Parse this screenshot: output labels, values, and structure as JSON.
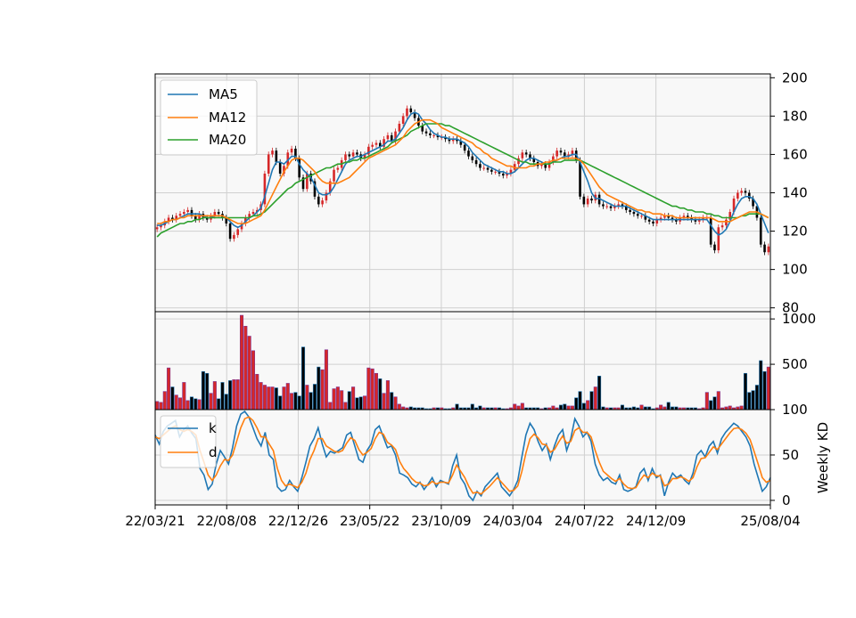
{
  "chart_data": [
    {
      "panel": "price",
      "type": "candlestick",
      "ylim": [
        78,
        202
      ],
      "yticks": [
        "80",
        "100",
        "120",
        "140",
        "160",
        "180",
        "200"
      ],
      "grid": true,
      "legend_position": "top-left",
      "legend": [
        "MA5",
        "MA12",
        "MA20"
      ],
      "colors": {
        "MA5": "#1f77b4",
        "MA12": "#ff7f0e",
        "MA20": "#2ca02c",
        "up": "#d62728",
        "down": "#000000"
      },
      "close": [
        122,
        123,
        125,
        127,
        126,
        128,
        129,
        130,
        131,
        128,
        126,
        129,
        127,
        126,
        128,
        130,
        129,
        127,
        124,
        116,
        118,
        121,
        124,
        127,
        129,
        130,
        131,
        134,
        150,
        160,
        162,
        156,
        150,
        154,
        161,
        163,
        158,
        148,
        142,
        150,
        146,
        138,
        134,
        136,
        140,
        146,
        152,
        153,
        157,
        160,
        159,
        161,
        160,
        158,
        160,
        164,
        165,
        166,
        164,
        168,
        170,
        167,
        172,
        176,
        180,
        184,
        182,
        179,
        175,
        172,
        171,
        170,
        170,
        169,
        169,
        168,
        167,
        168,
        167,
        165,
        162,
        159,
        157,
        155,
        153,
        153,
        152,
        151,
        151,
        150,
        149,
        150,
        152,
        155,
        158,
        161,
        160,
        158,
        156,
        154,
        155,
        153,
        156,
        159,
        162,
        161,
        159,
        160,
        162,
        157,
        138,
        134,
        137,
        136,
        139,
        134,
        133,
        133,
        132,
        133,
        134,
        133,
        131,
        130,
        129,
        128,
        128,
        126,
        125,
        124,
        126,
        127,
        128,
        127,
        126,
        125,
        127,
        128,
        127,
        126,
        125,
        126,
        127,
        127,
        113,
        110,
        122,
        123,
        126,
        130,
        137,
        140,
        141,
        140,
        137,
        133,
        127,
        113,
        109,
        112
      ],
      "ma5": [
        123,
        123,
        124,
        125,
        126,
        126,
        127,
        128,
        129,
        129,
        129,
        129,
        128,
        127,
        127,
        128,
        128,
        128,
        127,
        125,
        123,
        122,
        123,
        125,
        127,
        128,
        130,
        132,
        138,
        145,
        152,
        156,
        156,
        155,
        157,
        159,
        159,
        155,
        152,
        150,
        148,
        144,
        140,
        139,
        139,
        140,
        143,
        147,
        151,
        155,
        157,
        158,
        159,
        159,
        160,
        161,
        162,
        163,
        164,
        165,
        167,
        167,
        168,
        171,
        174,
        178,
        181,
        182,
        181,
        178,
        176,
        173,
        171,
        170,
        169,
        169,
        168,
        168,
        168,
        167,
        166,
        164,
        161,
        159,
        157,
        155,
        154,
        153,
        152,
        151,
        151,
        150,
        150,
        151,
        153,
        155,
        157,
        158,
        158,
        157,
        156,
        155,
        155,
        156,
        157,
        158,
        159,
        159,
        160,
        160,
        156,
        151,
        146,
        140,
        137,
        137,
        136,
        135,
        134,
        133,
        133,
        133,
        133,
        132,
        131,
        130,
        129,
        128,
        127,
        126,
        126,
        126,
        126,
        126,
        126,
        126,
        126,
        126,
        126,
        126,
        126,
        126,
        126,
        126,
        123,
        120,
        118,
        119,
        121,
        125,
        130,
        134,
        137,
        138,
        138,
        137,
        134,
        129,
        124,
        119
      ],
      "ma12": [
        124,
        124,
        125,
        125,
        126,
        126,
        127,
        127,
        128,
        128,
        128,
        128,
        128,
        128,
        128,
        128,
        128,
        128,
        127,
        126,
        125,
        124,
        124,
        124,
        125,
        126,
        127,
        128,
        131,
        135,
        139,
        143,
        147,
        151,
        154,
        157,
        158,
        158,
        157,
        155,
        153,
        151,
        148,
        146,
        145,
        145,
        145,
        145,
        146,
        147,
        148,
        150,
        152,
        154,
        156,
        158,
        159,
        160,
        161,
        162,
        163,
        164,
        165,
        167,
        169,
        172,
        174,
        176,
        177,
        178,
        178,
        178,
        177,
        176,
        174,
        173,
        172,
        171,
        170,
        169,
        168,
        167,
        166,
        164,
        163,
        161,
        160,
        158,
        157,
        156,
        155,
        154,
        154,
        153,
        153,
        153,
        153,
        154,
        154,
        155,
        155,
        156,
        156,
        157,
        157,
        158,
        158,
        158,
        158,
        158,
        157,
        155,
        152,
        149,
        146,
        143,
        141,
        139,
        138,
        137,
        136,
        135,
        134,
        133,
        132,
        131,
        131,
        130,
        130,
        129,
        129,
        129,
        128,
        128,
        128,
        127,
        127,
        127,
        127,
        127,
        127,
        127,
        127,
        127,
        127,
        126,
        125,
        125,
        125,
        125,
        126,
        127,
        128,
        129,
        130,
        130,
        130,
        129,
        128,
        127
      ],
      "ma20": [
        117,
        119,
        120,
        121,
        122,
        123,
        124,
        124,
        125,
        125,
        126,
        126,
        127,
        127,
        127,
        127,
        127,
        127,
        127,
        127,
        127,
        127,
        127,
        127,
        127,
        128,
        128,
        129,
        130,
        132,
        134,
        136,
        138,
        140,
        142,
        143,
        145,
        146,
        147,
        148,
        149,
        150,
        151,
        152,
        153,
        153,
        154,
        155,
        155,
        156,
        156,
        157,
        157,
        158,
        158,
        159,
        160,
        161,
        162,
        163,
        164,
        166,
        167,
        168,
        169,
        170,
        172,
        173,
        174,
        175,
        176,
        176,
        176,
        176,
        176,
        175,
        175,
        174,
        173,
        172,
        171,
        170,
        169,
        168,
        167,
        166,
        165,
        164,
        163,
        162,
        161,
        160,
        159,
        158,
        157,
        156,
        156,
        155,
        155,
        155,
        155,
        155,
        155,
        156,
        156,
        156,
        157,
        157,
        157,
        157,
        157,
        156,
        155,
        154,
        153,
        152,
        151,
        150,
        149,
        148,
        147,
        146,
        145,
        144,
        143,
        142,
        141,
        140,
        139,
        138,
        137,
        136,
        135,
        134,
        133,
        133,
        132,
        132,
        131,
        131,
        130,
        130,
        130,
        129,
        129,
        128,
        128,
        127,
        127,
        127,
        127,
        127,
        128,
        128,
        129,
        129,
        129,
        129,
        128,
        127
      ]
    },
    {
      "panel": "volume",
      "type": "bar",
      "ylim": [
        0,
        1080
      ],
      "yticks": [
        "500",
        "1000"
      ],
      "grid": true,
      "values": [
        90,
        80,
        200,
        460,
        250,
        160,
        130,
        300,
        100,
        140,
        120,
        110,
        420,
        400,
        180,
        310,
        120,
        300,
        170,
        320,
        330,
        330,
        1040,
        920,
        810,
        650,
        390,
        300,
        270,
        250,
        250,
        240,
        150,
        250,
        290,
        180,
        190,
        150,
        690,
        270,
        190,
        280,
        470,
        440,
        660,
        80,
        230,
        250,
        210,
        80,
        200,
        250,
        130,
        140,
        150,
        460,
        450,
        400,
        340,
        180,
        320,
        190,
        140,
        60,
        30,
        20,
        30,
        20,
        20,
        20,
        10,
        10,
        20,
        20,
        20,
        10,
        10,
        20,
        60,
        20,
        20,
        20,
        60,
        20,
        40,
        20,
        20,
        20,
        20,
        20,
        10,
        10,
        20,
        60,
        40,
        70,
        20,
        20,
        20,
        20,
        10,
        20,
        20,
        40,
        20,
        50,
        60,
        40,
        40,
        130,
        200,
        70,
        100,
        200,
        250,
        370,
        30,
        20,
        20,
        20,
        20,
        50,
        20,
        20,
        30,
        20,
        50,
        30,
        30,
        10,
        20,
        50,
        30,
        80,
        30,
        30,
        20,
        20,
        20,
        20,
        20,
        10,
        20,
        190,
        100,
        140,
        200,
        20,
        30,
        40,
        20,
        30,
        40,
        400,
        190,
        210,
        270,
        540,
        420,
        470
      ]
    },
    {
      "panel": "kd",
      "type": "line",
      "ylabel": "Weekly KD",
      "ylim": [
        -5,
        100
      ],
      "yticks": [
        "0",
        "50",
        "100"
      ],
      "grid": true,
      "legend_position": "top-left",
      "legend": [
        "k",
        "d"
      ],
      "colors": {
        "k": "#1f77b4",
        "d": "#ff7f0e"
      },
      "x_tick_labels": [
        "22/03/21",
        "22/08/08",
        "22/12/26",
        "23/05/22",
        "23/10/09",
        "24/03/04",
        "24/07/22",
        "24/12/09",
        "25/08/04"
      ],
      "x_tick_index": [
        0,
        20,
        40,
        60,
        80,
        100,
        120,
        140,
        172
      ],
      "k": [
        72,
        62,
        76,
        82,
        85,
        88,
        70,
        78,
        82,
        74,
        68,
        35,
        28,
        12,
        18,
        40,
        55,
        48,
        40,
        58,
        82,
        95,
        98,
        92,
        80,
        68,
        60,
        75,
        50,
        45,
        15,
        10,
        12,
        22,
        15,
        10,
        25,
        42,
        60,
        68,
        80,
        62,
        48,
        54,
        52,
        55,
        58,
        72,
        75,
        60,
        45,
        42,
        55,
        62,
        78,
        82,
        70,
        58,
        60,
        50,
        30,
        28,
        25,
        18,
        15,
        20,
        12,
        18,
        25,
        15,
        22,
        20,
        18,
        38,
        50,
        25,
        18,
        5,
        0,
        10,
        5,
        15,
        20,
        25,
        30,
        15,
        10,
        5,
        12,
        22,
        48,
        72,
        85,
        78,
        65,
        55,
        62,
        45,
        60,
        72,
        78,
        55,
        68,
        90,
        82,
        70,
        75,
        65,
        40,
        28,
        22,
        25,
        20,
        18,
        28,
        12,
        10,
        12,
        15,
        30,
        35,
        22,
        35,
        25,
        28,
        5,
        20,
        30,
        25,
        28,
        22,
        18,
        30,
        50,
        55,
        48,
        60,
        65,
        52,
        68,
        75,
        80,
        85,
        82,
        76,
        70,
        60,
        40,
        25,
        10,
        15,
        25
      ],
      "d": [
        70,
        68,
        72,
        76,
        80,
        82,
        78,
        76,
        78,
        76,
        72,
        55,
        42,
        28,
        22,
        28,
        38,
        45,
        44,
        50,
        65,
        80,
        90,
        92,
        88,
        80,
        70,
        70,
        62,
        55,
        35,
        22,
        16,
        18,
        16,
        14,
        20,
        30,
        45,
        55,
        68,
        68,
        60,
        57,
        54,
        53,
        55,
        63,
        69,
        66,
        56,
        50,
        53,
        57,
        68,
        75,
        73,
        64,
        61,
        56,
        43,
        35,
        30,
        24,
        20,
        19,
        16,
        17,
        21,
        18,
        20,
        20,
        19,
        28,
        39,
        32,
        25,
        15,
        8,
        9,
        7,
        11,
        15,
        20,
        25,
        20,
        15,
        10,
        11,
        16,
        32,
        52,
        68,
        73,
        69,
        62,
        61,
        53,
        56,
        64,
        71,
        63,
        65,
        77,
        80,
        75,
        75,
        70,
        55,
        42,
        32,
        28,
        24,
        21,
        24,
        18,
        14,
        13,
        14,
        22,
        28,
        25,
        30,
        27,
        27,
        16,
        18,
        24,
        24,
        26,
        24,
        21,
        25,
        37,
        46,
        47,
        53,
        59,
        56,
        62,
        68,
        74,
        79,
        80,
        78,
        74,
        67,
        54,
        40,
        25,
        20,
        22
      ]
    }
  ]
}
